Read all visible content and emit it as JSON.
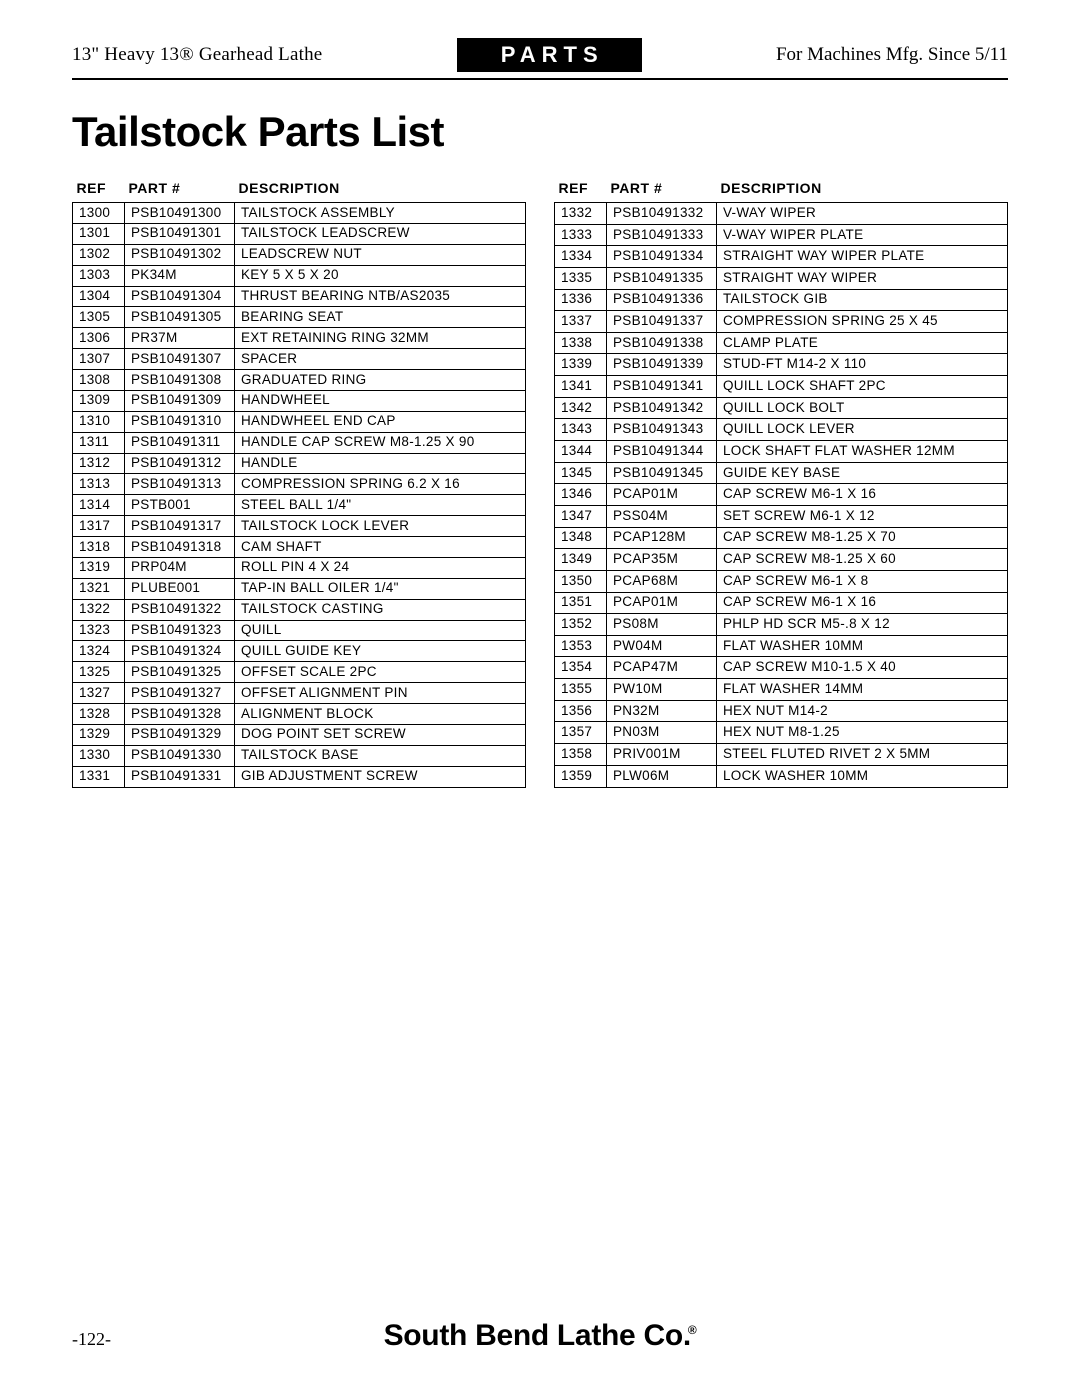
{
  "header": {
    "left": "13\" Heavy 13® Gearhead Lathe",
    "center": "PARTS",
    "right": "For Machines Mfg. Since 5/11"
  },
  "title": "Tailstock Parts List",
  "columns": {
    "ref": "REF",
    "part": "PART #",
    "desc": "DESCRIPTION"
  },
  "left_table": [
    [
      "1300",
      "PSB10491300",
      "TAILSTOCK ASSEMBLY"
    ],
    [
      "1301",
      "PSB10491301",
      "TAILSTOCK LEADSCREW"
    ],
    [
      "1302",
      "PSB10491302",
      "LEADSCREW NUT"
    ],
    [
      "1303",
      "PK34M",
      "KEY 5 X 5 X 20"
    ],
    [
      "1304",
      "PSB10491304",
      "THRUST BEARING NTB/AS2035"
    ],
    [
      "1305",
      "PSB10491305",
      "BEARING SEAT"
    ],
    [
      "1306",
      "PR37M",
      "EXT RETAINING RING 32MM"
    ],
    [
      "1307",
      "PSB10491307",
      "SPACER"
    ],
    [
      "1308",
      "PSB10491308",
      "GRADUATED RING"
    ],
    [
      "1309",
      "PSB10491309",
      "HANDWHEEL"
    ],
    [
      "1310",
      "PSB10491310",
      "HANDWHEEL END CAP"
    ],
    [
      "1311",
      "PSB10491311",
      "HANDLE CAP SCREW M8-1.25 X 90"
    ],
    [
      "1312",
      "PSB10491312",
      "HANDLE"
    ],
    [
      "1313",
      "PSB10491313",
      "COMPRESSION SPRING 6.2 X 16"
    ],
    [
      "1314",
      "PSTB001",
      "STEEL BALL 1/4\""
    ],
    [
      "1317",
      "PSB10491317",
      "TAILSTOCK LOCK LEVER"
    ],
    [
      "1318",
      "PSB10491318",
      "CAM SHAFT"
    ],
    [
      "1319",
      "PRP04M",
      "ROLL PIN 4 X 24"
    ],
    [
      "1321",
      "PLUBE001",
      "TAP-IN BALL OILER 1/4\""
    ],
    [
      "1322",
      "PSB10491322",
      "TAILSTOCK CASTING"
    ],
    [
      "1323",
      "PSB10491323",
      "QUILL"
    ],
    [
      "1324",
      "PSB10491324",
      "QUILL GUIDE KEY"
    ],
    [
      "1325",
      "PSB10491325",
      "OFFSET SCALE 2PC"
    ],
    [
      "1327",
      "PSB10491327",
      "OFFSET ALIGNMENT PIN"
    ],
    [
      "1328",
      "PSB10491328",
      "ALIGNMENT BLOCK"
    ],
    [
      "1329",
      "PSB10491329",
      "DOG POINT SET SCREW"
    ],
    [
      "1330",
      "PSB10491330",
      "TAILSTOCK BASE"
    ],
    [
      "1331",
      "PSB10491331",
      "GIB ADJUSTMENT SCREW"
    ]
  ],
  "right_table": [
    [
      "1332",
      "PSB10491332",
      "V-WAY WIPER"
    ],
    [
      "1333",
      "PSB10491333",
      "V-WAY WIPER PLATE"
    ],
    [
      "1334",
      "PSB10491334",
      "STRAIGHT WAY WIPER PLATE"
    ],
    [
      "1335",
      "PSB10491335",
      "STRAIGHT WAY WIPER"
    ],
    [
      "1336",
      "PSB10491336",
      "TAILSTOCK GIB"
    ],
    [
      "1337",
      "PSB10491337",
      "COMPRESSION SPRING 25 X 45"
    ],
    [
      "1338",
      "PSB10491338",
      "CLAMP PLATE"
    ],
    [
      "1339",
      "PSB10491339",
      "STUD-FT M14-2 X 110"
    ],
    [
      "1341",
      "PSB10491341",
      "QUILL LOCK SHAFT 2PC"
    ],
    [
      "1342",
      "PSB10491342",
      "QUILL LOCK BOLT"
    ],
    [
      "1343",
      "PSB10491343",
      "QUILL LOCK LEVER"
    ],
    [
      "1344",
      "PSB10491344",
      "LOCK SHAFT FLAT WASHER 12MM"
    ],
    [
      "1345",
      "PSB10491345",
      "GUIDE KEY BASE"
    ],
    [
      "1346",
      "PCAP01M",
      "CAP SCREW M6-1 X 16"
    ],
    [
      "1347",
      "PSS04M",
      "SET SCREW M6-1 X 12"
    ],
    [
      "1348",
      "PCAP128M",
      "CAP SCREW M8-1.25 X 70"
    ],
    [
      "1349",
      "PCAP35M",
      "CAP SCREW M8-1.25 X 60"
    ],
    [
      "1350",
      "PCAP68M",
      "CAP SCREW M6-1 X 8"
    ],
    [
      "1351",
      "PCAP01M",
      "CAP SCREW M6-1 X 16"
    ],
    [
      "1352",
      "PS08M",
      "PHLP HD SCR M5-.8 X 12"
    ],
    [
      "1353",
      "PW04M",
      "FLAT WASHER 10MM"
    ],
    [
      "1354",
      "PCAP47M",
      "CAP SCREW M10-1.5 X 40"
    ],
    [
      "1355",
      "PW10M",
      "FLAT WASHER 14MM"
    ],
    [
      "1356",
      "PN32M",
      "HEX NUT M14-2"
    ],
    [
      "1357",
      "PN03M",
      "HEX NUT M8-1.25"
    ],
    [
      "1358",
      "PRIV001M",
      "STEEL FLUTED RIVET 2 X 5MM"
    ],
    [
      "1359",
      "PLW06M",
      "LOCK WASHER 10MM"
    ]
  ],
  "footer": {
    "page": "-122-",
    "brand": "South Bend Lathe Co.",
    "reg": "®"
  }
}
